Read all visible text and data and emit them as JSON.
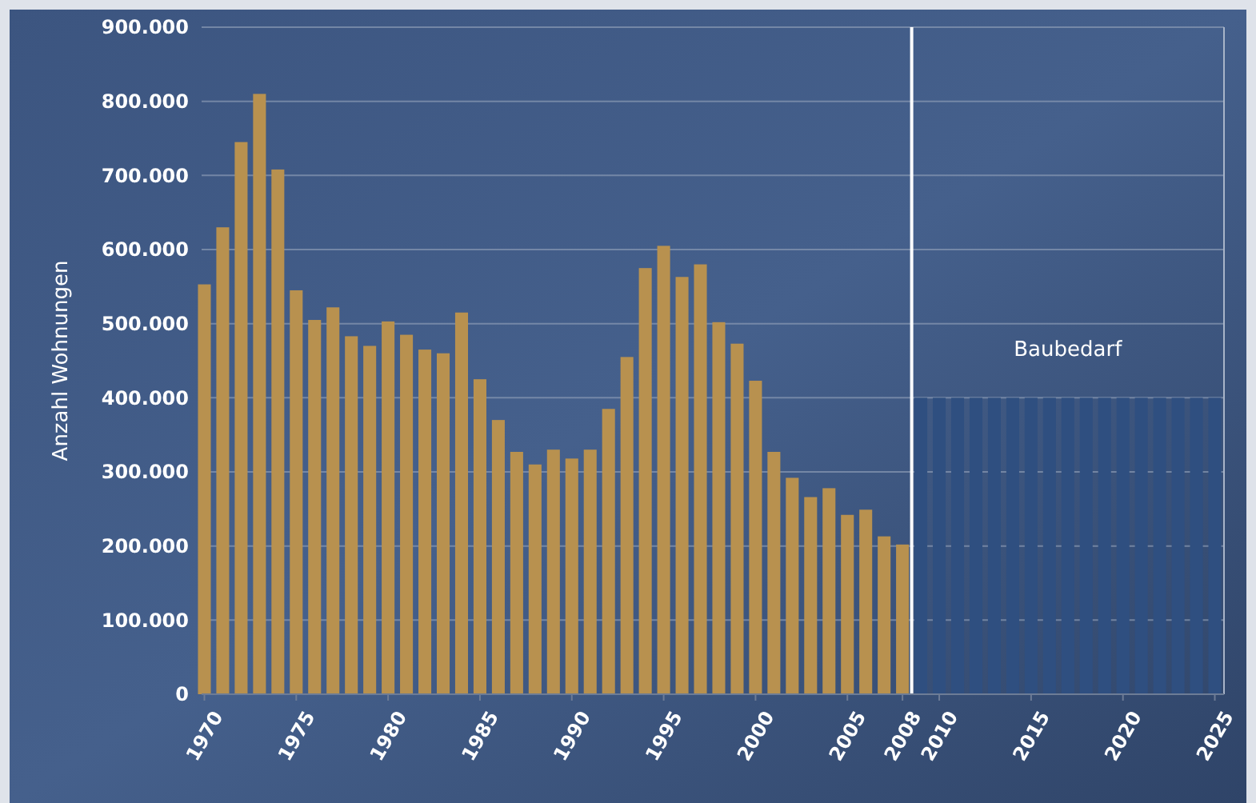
{
  "chart_data": {
    "type": "bar",
    "ylabel": "Anzahl Wohnungen",
    "xlim": [
      1969.5,
      2025.5
    ],
    "xticks": [
      1970,
      1975,
      1980,
      1985,
      1990,
      1995,
      2000,
      2005,
      2008,
      2010,
      2015,
      2020,
      2025
    ],
    "ylim": [
      0,
      900000
    ],
    "yticks": [
      {
        "value": 0,
        "label": "0"
      },
      {
        "value": 100000,
        "label": "100.000"
      },
      {
        "value": 200000,
        "label": "200.000"
      },
      {
        "value": 300000,
        "label": "300.000"
      },
      {
        "value": 400000,
        "label": "400.000"
      },
      {
        "value": 500000,
        "label": "500.000"
      },
      {
        "value": 600000,
        "label": "600.000"
      },
      {
        "value": 700000,
        "label": "700.000"
      },
      {
        "value": 800000,
        "label": "800.000"
      },
      {
        "value": 900000,
        "label": "900.000"
      }
    ],
    "grid": "y",
    "series": [
      {
        "color": "#b8914f",
        "x": [
          1970,
          1971,
          1972,
          1973,
          1974,
          1975,
          1976,
          1977,
          1978,
          1979,
          1980,
          1981,
          1982,
          1983,
          1984,
          1985,
          1986,
          1987,
          1988,
          1989,
          1990,
          1991,
          1992,
          1993,
          1994,
          1995,
          1996,
          1997,
          1998,
          1999,
          2000,
          2001,
          2002,
          2003,
          2004,
          2005,
          2006,
          2007,
          2008
        ],
        "values": [
          553000,
          630000,
          745000,
          810000,
          708000,
          545000,
          505000,
          522000,
          483000,
          470000,
          503000,
          485000,
          465000,
          460000,
          515000,
          425000,
          370000,
          327000,
          310000,
          330000,
          318000,
          330000,
          385000,
          455000,
          575000,
          605000,
          563000,
          580000,
          502000,
          473000,
          423000,
          327000,
          292000,
          266000,
          278000,
          242000,
          249000,
          213000,
          202000
        ]
      },
      {
        "color": "#2f4f80",
        "x": [
          2009,
          2010,
          2011,
          2012,
          2013,
          2014,
          2015,
          2016,
          2017,
          2018,
          2019,
          2020,
          2021,
          2022,
          2023,
          2024,
          2025
        ],
        "values": [
          400000,
          400000,
          400000,
          400000,
          400000,
          400000,
          400000,
          400000,
          400000,
          400000,
          400000,
          400000,
          400000,
          400000,
          400000,
          400000,
          400000
        ]
      }
    ],
    "ref_lines": [
      {
        "axis": "x",
        "value": 2008.5,
        "color": "#ffffff"
      }
    ],
    "annotations": [
      "Baubedarf"
    ]
  }
}
